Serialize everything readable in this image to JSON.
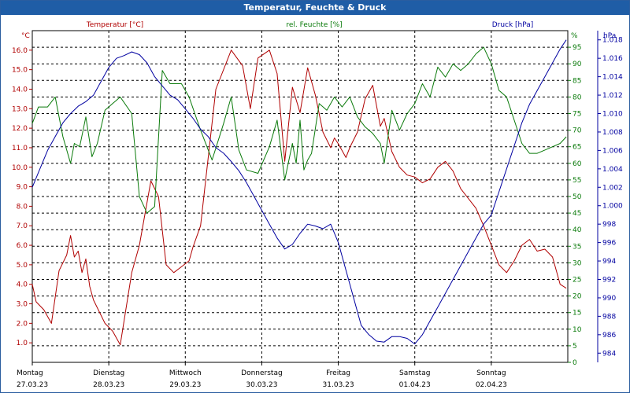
{
  "window": {
    "title": "Temperatur, Feuchte & Druck"
  },
  "colors": {
    "temperature": "#b00000",
    "humidity": "#0a7a0a",
    "pressure": "#0000a0",
    "titlebar": "#1f5da6"
  },
  "chart_data": {
    "type": "line",
    "title": "Temperatur, Feuchte & Druck",
    "grid": true,
    "x_axis": {
      "range": [
        0,
        7
      ],
      "tick_days": [
        {
          "day": "Montag",
          "date": "27.03.23"
        },
        {
          "day": "Dienstag",
          "date": "28.03.23"
        },
        {
          "day": "Mittwoch",
          "date": "29.03.23"
        },
        {
          "day": "Donnerstag",
          "date": "30.03.23"
        },
        {
          "day": "Freitag",
          "date": "31.03.23"
        },
        {
          "day": "Samstag",
          "date": "01.04.23"
        },
        {
          "day": "Sonntag",
          "date": "02.04.23"
        }
      ]
    },
    "axes": {
      "temperature": {
        "series_label": "Temperatur [°C]",
        "unit": "°C",
        "range": [
          0,
          17
        ],
        "ticks": [
          "1.0",
          "2.0",
          "3.0",
          "4.0",
          "5.0",
          "6.0",
          "7.0",
          "8.0",
          "9.0",
          "10.0",
          "11.0",
          "12.0",
          "13.0",
          "14.0",
          "15.0",
          "16.0"
        ]
      },
      "humidity": {
        "series_label": "rel. Feuchte [%]",
        "unit": "%",
        "range": [
          0,
          100
        ],
        "ticks": [
          "0",
          "5",
          "10",
          "15",
          "20",
          "25",
          "30",
          "35",
          "40",
          "45",
          "50",
          "55",
          "60",
          "65",
          "70",
          "75",
          "80",
          "85",
          "90",
          "95"
        ]
      },
      "pressure": {
        "series_label": "Druck [hPa]",
        "unit": "hPa",
        "range": [
          983,
          1019
        ],
        "ticks": [
          "984",
          "986",
          "988",
          "990",
          "992",
          "994",
          "996",
          "998",
          "1.000",
          "1.002",
          "1.004",
          "1.006",
          "1.008",
          "1.010",
          "1.012",
          "1.014",
          "1.016",
          "1.018"
        ]
      }
    },
    "series": [
      {
        "name": "Temperatur [°C]",
        "axis": "temperature",
        "x": [
          0,
          0.05,
          0.15,
          0.25,
          0.35,
          0.45,
          0.5,
          0.55,
          0.6,
          0.65,
          0.7,
          0.75,
          0.8,
          0.95,
          1.05,
          1.15,
          1.3,
          1.4,
          1.55,
          1.65,
          1.75,
          1.85,
          1.95,
          2.05,
          2.1,
          2.2,
          2.4,
          2.6,
          2.75,
          2.85,
          2.95,
          3.1,
          3.2,
          3.3,
          3.4,
          3.5,
          3.6,
          3.7,
          3.8,
          3.9,
          3.95,
          4.0,
          4.1,
          4.15,
          4.25,
          4.35,
          4.45,
          4.55,
          4.6,
          4.7,
          4.8,
          4.9,
          5.0,
          5.1,
          5.2,
          5.3,
          5.4,
          5.5,
          5.6,
          5.7,
          5.8,
          5.9,
          6.0,
          6.1,
          6.2,
          6.3,
          6.4,
          6.5,
          6.6,
          6.7,
          6.8,
          6.9,
          6.98
        ],
        "y": [
          4.0,
          3.1,
          2.7,
          2.0,
          4.7,
          5.5,
          6.5,
          5.4,
          5.7,
          4.6,
          5.3,
          3.9,
          3.2,
          2.0,
          1.6,
          0.9,
          4.6,
          6.0,
          9.3,
          8.5,
          5.0,
          4.6,
          4.9,
          5.2,
          5.9,
          7.0,
          14.0,
          16.0,
          15.2,
          13.0,
          15.6,
          16.0,
          14.8,
          10.3,
          14.1,
          12.8,
          15.1,
          13.7,
          11.8,
          11.0,
          11.5,
          11.2,
          10.5,
          11.0,
          11.8,
          13.5,
          14.2,
          12.1,
          12.5,
          10.8,
          10.0,
          9.6,
          9.5,
          9.2,
          9.4,
          10.0,
          10.3,
          9.8,
          8.9,
          8.4,
          7.9,
          7.0,
          6.0,
          5.0,
          4.6,
          5.2,
          6.0,
          6.3,
          5.7,
          5.8,
          5.4,
          4.0,
          3.8
        ]
      },
      {
        "name": "rel. Feuchte [%]",
        "axis": "humidity",
        "x": [
          0,
          0.08,
          0.2,
          0.3,
          0.4,
          0.5,
          0.55,
          0.62,
          0.7,
          0.78,
          0.85,
          0.95,
          1.05,
          1.15,
          1.3,
          1.4,
          1.5,
          1.6,
          1.7,
          1.8,
          1.95,
          2.05,
          2.2,
          2.35,
          2.5,
          2.6,
          2.7,
          2.8,
          2.95,
          3.1,
          3.2,
          3.3,
          3.4,
          3.45,
          3.5,
          3.55,
          3.6,
          3.65,
          3.75,
          3.85,
          3.95,
          4.05,
          4.15,
          4.25,
          4.35,
          4.45,
          4.55,
          4.6,
          4.7,
          4.8,
          4.9,
          5.0,
          5.1,
          5.2,
          5.3,
          5.4,
          5.5,
          5.6,
          5.7,
          5.8,
          5.9,
          6.0,
          6.1,
          6.2,
          6.3,
          6.4,
          6.5,
          6.6,
          6.7,
          6.8,
          6.9,
          6.98
        ],
        "y": [
          72,
          77,
          77,
          80,
          68,
          60,
          66,
          65,
          74,
          62,
          66,
          76,
          78,
          80,
          75,
          50,
          45,
          47,
          88,
          84,
          84,
          80,
          70,
          61,
          72,
          80,
          64,
          58,
          57,
          65,
          73,
          55,
          66,
          60,
          73,
          58,
          61,
          63,
          78,
          76,
          80,
          77,
          80,
          74,
          71,
          69,
          66,
          60,
          76,
          70,
          75,
          78,
          84,
          80,
          89,
          86,
          90,
          88,
          90,
          93,
          95,
          90,
          82,
          80,
          73,
          66,
          63,
          63,
          64,
          65,
          66,
          68
        ]
      },
      {
        "name": "Druck [hPa]",
        "axis": "pressure",
        "x": [
          0,
          0.1,
          0.2,
          0.3,
          0.4,
          0.5,
          0.6,
          0.7,
          0.8,
          0.9,
          1.0,
          1.1,
          1.2,
          1.3,
          1.4,
          1.5,
          1.6,
          1.7,
          1.8,
          1.9,
          2.0,
          2.1,
          2.2,
          2.3,
          2.4,
          2.5,
          2.6,
          2.7,
          2.8,
          2.9,
          3.0,
          3.1,
          3.2,
          3.3,
          3.4,
          3.5,
          3.6,
          3.7,
          3.8,
          3.9,
          4.0,
          4.1,
          4.2,
          4.3,
          4.4,
          4.5,
          4.6,
          4.7,
          4.8,
          4.9,
          5.0,
          5.1,
          5.2,
          5.3,
          5.4,
          5.5,
          5.6,
          5.7,
          5.8,
          5.9,
          6.0,
          6.1,
          6.2,
          6.3,
          6.4,
          6.5,
          6.6,
          6.7,
          6.8,
          6.9,
          6.98
        ],
        "y": [
          1002.0,
          1004.0,
          1006.0,
          1007.5,
          1009.0,
          1010.0,
          1010.8,
          1011.3,
          1012.0,
          1013.5,
          1015.0,
          1016.0,
          1016.3,
          1016.7,
          1016.4,
          1015.5,
          1014.0,
          1013.0,
          1012.0,
          1011.5,
          1010.5,
          1009.5,
          1008.3,
          1007.5,
          1006.3,
          1005.7,
          1004.8,
          1003.8,
          1002.5,
          1001.0,
          999.5,
          998.0,
          996.5,
          995.3,
          995.8,
          997.0,
          998.0,
          997.8,
          997.5,
          998.0,
          996.0,
          993.0,
          990.0,
          987.0,
          986.0,
          985.3,
          985.2,
          985.8,
          985.8,
          985.6,
          985.0,
          986.0,
          987.5,
          989.0,
          990.5,
          992.0,
          993.5,
          995.0,
          996.5,
          998.0,
          999.0,
          1001.5,
          1004.0,
          1006.5,
          1009.0,
          1011.0,
          1012.5,
          1014.0,
          1015.5,
          1017.0,
          1018.0
        ]
      }
    ]
  }
}
